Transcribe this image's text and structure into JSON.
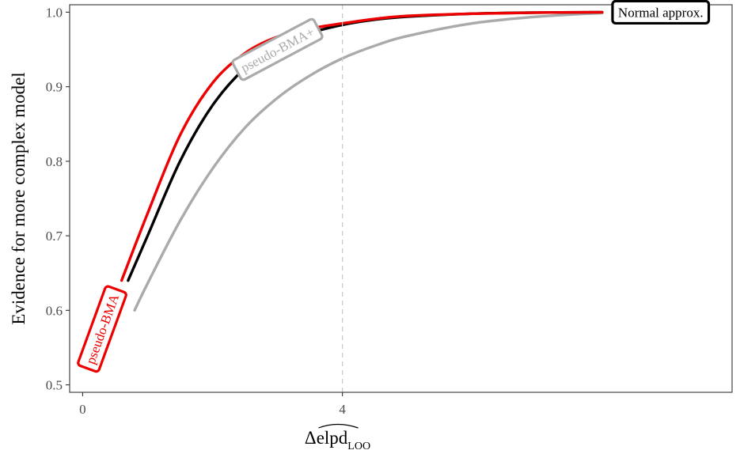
{
  "chart_data": {
    "type": "line",
    "title": "",
    "xlabel": "Δelpd",
    "xlabel_subscript": "LOO",
    "ylabel": "Evidence for more complex model",
    "xlim": [
      -0.2,
      10.0
    ],
    "ylim": [
      0.49,
      1.01
    ],
    "x_ticks": [
      0,
      4
    ],
    "x_tick_labels": [
      "0",
      "4"
    ],
    "y_ticks": [
      0.5,
      0.6,
      0.7,
      0.8,
      0.9,
      1.0
    ],
    "y_tick_labels": [
      "0.5",
      "0.6",
      "0.7",
      "0.8",
      "0.9",
      "1.0"
    ],
    "reference_line": {
      "x": 4,
      "style": "dashed",
      "color": "#c8c8c8"
    },
    "grid": false,
    "legend": "none (direct labels on lines)",
    "series": [
      {
        "name": "pseudo-BMA+",
        "color": "#aaaaaa",
        "x": [
          0.8,
          1,
          1.5,
          2,
          2.5,
          3,
          3.5,
          4,
          4.5,
          5,
          6,
          7,
          8
        ],
        "y": [
          0.6,
          0.636,
          0.72,
          0.79,
          0.845,
          0.885,
          0.915,
          0.938,
          0.955,
          0.968,
          0.985,
          0.994,
          0.999
        ]
      },
      {
        "name": "",
        "color": "#000000",
        "x": [
          0.7,
          1,
          1.5,
          2,
          2.5,
          3,
          3.5,
          4,
          4.5,
          5,
          6,
          7,
          8
        ],
        "y": [
          0.64,
          0.7,
          0.8,
          0.875,
          0.925,
          0.955,
          0.972,
          0.983,
          0.99,
          0.994,
          0.998,
          0.9995,
          1.0
        ]
      },
      {
        "name": "pseudo-BMA",
        "color": "#ee0000",
        "x": [
          0.6,
          1,
          1.5,
          2,
          2.5,
          3,
          3.5,
          4,
          4.5,
          5,
          6,
          7,
          8
        ],
        "y": [
          0.64,
          0.73,
          0.835,
          0.905,
          0.945,
          0.967,
          0.978,
          0.985,
          0.991,
          0.995,
          0.998,
          0.9995,
          1.0
        ]
      }
    ],
    "annotations": [
      {
        "text": "Normal approx.",
        "x": 8.9,
        "y": 1.0,
        "color": "#000000",
        "angle_deg": 0,
        "fill": "#ffffff"
      },
      {
        "text": "pseudo-BMA+",
        "x": 3.0,
        "y": 0.95,
        "color": "#aaaaaa",
        "angle_deg": -28,
        "fill": "#ffffff"
      },
      {
        "text": "pseudo-BMA",
        "x": 0.3,
        "y": 0.575,
        "color": "#ee0000",
        "angle_deg": -70,
        "fill": "#ffffff"
      }
    ]
  }
}
